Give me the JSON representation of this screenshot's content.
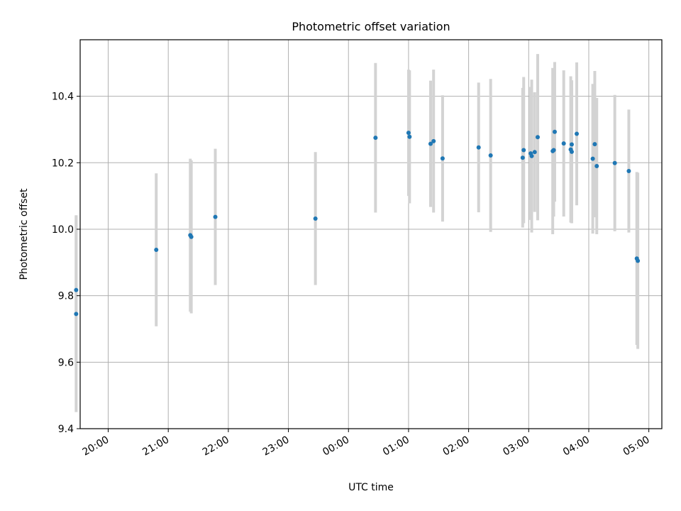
{
  "chart_data": {
    "type": "scatter",
    "title": "Photometric offset variation",
    "xlabel": "UTC time",
    "ylabel": "Photometric offset",
    "ylim": [
      9.4,
      10.57
    ],
    "xlim": [
      "19:32",
      "05:13"
    ],
    "grid": true,
    "marker_color": "#1f77b4",
    "errorbar_color": "#d3d3d3",
    "x_ticks": [
      "20:00",
      "21:00",
      "22:00",
      "23:00",
      "00:00",
      "01:00",
      "02:00",
      "03:00",
      "04:00",
      "05:00"
    ],
    "y_ticks": [
      "9.4",
      "9.6",
      "9.8",
      "10.0",
      "10.2",
      "10.4"
    ],
    "points": [
      {
        "x": "19:28",
        "y": 9.817,
        "err": 0.225
      },
      {
        "x": "19:28",
        "y": 9.745,
        "err": 0.295
      },
      {
        "x": "20:48",
        "y": 9.938,
        "err": 0.23
      },
      {
        "x": "21:22",
        "y": 9.982,
        "err": 0.23
      },
      {
        "x": "21:23",
        "y": 9.977,
        "err": 0.23
      },
      {
        "x": "21:47",
        "y": 10.037,
        "err": 0.205
      },
      {
        "x": "23:27",
        "y": 10.032,
        "err": 0.2
      },
      {
        "x": "00:27",
        "y": 10.275,
        "err": 0.225
      },
      {
        "x": "01:00",
        "y": 10.29,
        "err": 0.19
      },
      {
        "x": "01:01",
        "y": 10.278,
        "err": 0.2
      },
      {
        "x": "01:22",
        "y": 10.257,
        "err": 0.19
      },
      {
        "x": "01:25",
        "y": 10.265,
        "err": 0.215
      },
      {
        "x": "01:34",
        "y": 10.213,
        "err": 0.19
      },
      {
        "x": "02:10",
        "y": 10.246,
        "err": 0.195
      },
      {
        "x": "02:22",
        "y": 10.222,
        "err": 0.23
      },
      {
        "x": "02:54",
        "y": 10.215,
        "err": 0.21
      },
      {
        "x": "02:55",
        "y": 10.238,
        "err": 0.22
      },
      {
        "x": "03:02",
        "y": 10.228,
        "err": 0.2
      },
      {
        "x": "03:03",
        "y": 10.22,
        "err": 0.23
      },
      {
        "x": "03:06",
        "y": 10.232,
        "err": 0.18
      },
      {
        "x": "03:09",
        "y": 10.277,
        "err": 0.25
      },
      {
        "x": "03:24",
        "y": 10.235,
        "err": 0.25
      },
      {
        "x": "03:25",
        "y": 10.238,
        "err": 0.2
      },
      {
        "x": "03:26",
        "y": 10.293,
        "err": 0.21
      },
      {
        "x": "03:35",
        "y": 10.258,
        "err": 0.22
      },
      {
        "x": "03:42",
        "y": 10.24,
        "err": 0.22
      },
      {
        "x": "03:43",
        "y": 10.233,
        "err": 0.215
      },
      {
        "x": "03:43",
        "y": 10.255,
        "err": 0.17
      },
      {
        "x": "03:48",
        "y": 10.287,
        "err": 0.215
      },
      {
        "x": "04:04",
        "y": 10.212,
        "err": 0.225
      },
      {
        "x": "04:06",
        "y": 10.256,
        "err": 0.22
      },
      {
        "x": "04:08",
        "y": 10.19,
        "err": 0.205
      },
      {
        "x": "04:26",
        "y": 10.199,
        "err": 0.205
      },
      {
        "x": "04:40",
        "y": 10.175,
        "err": 0.185
      },
      {
        "x": "04:48",
        "y": 9.912,
        "err": 0.26
      },
      {
        "x": "04:49",
        "y": 9.905,
        "err": 0.265
      }
    ]
  }
}
